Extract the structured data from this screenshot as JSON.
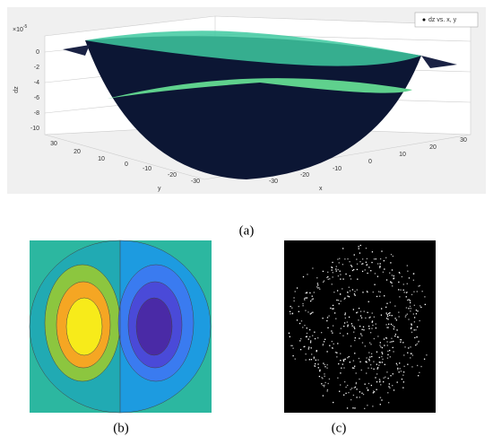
{
  "panel_a": {
    "exponent_base": "×10",
    "exponent_power": "-5",
    "z_label": "dz",
    "x_label": "x",
    "y_label": "y",
    "z_ticks": [
      "0",
      "-2",
      "-4",
      "-6",
      "-8",
      "-10"
    ],
    "y_ticks": [
      "30",
      "20",
      "10",
      "0",
      "-10",
      "-20",
      "-30"
    ],
    "x_ticks": [
      "-30",
      "-20",
      "-10",
      "0",
      "10",
      "20",
      "30"
    ],
    "legend": "dz vs. x, y",
    "caption": "(a)"
  },
  "panel_b": {
    "caption": "(b)"
  },
  "panel_c": {
    "caption": "(c)"
  }
}
